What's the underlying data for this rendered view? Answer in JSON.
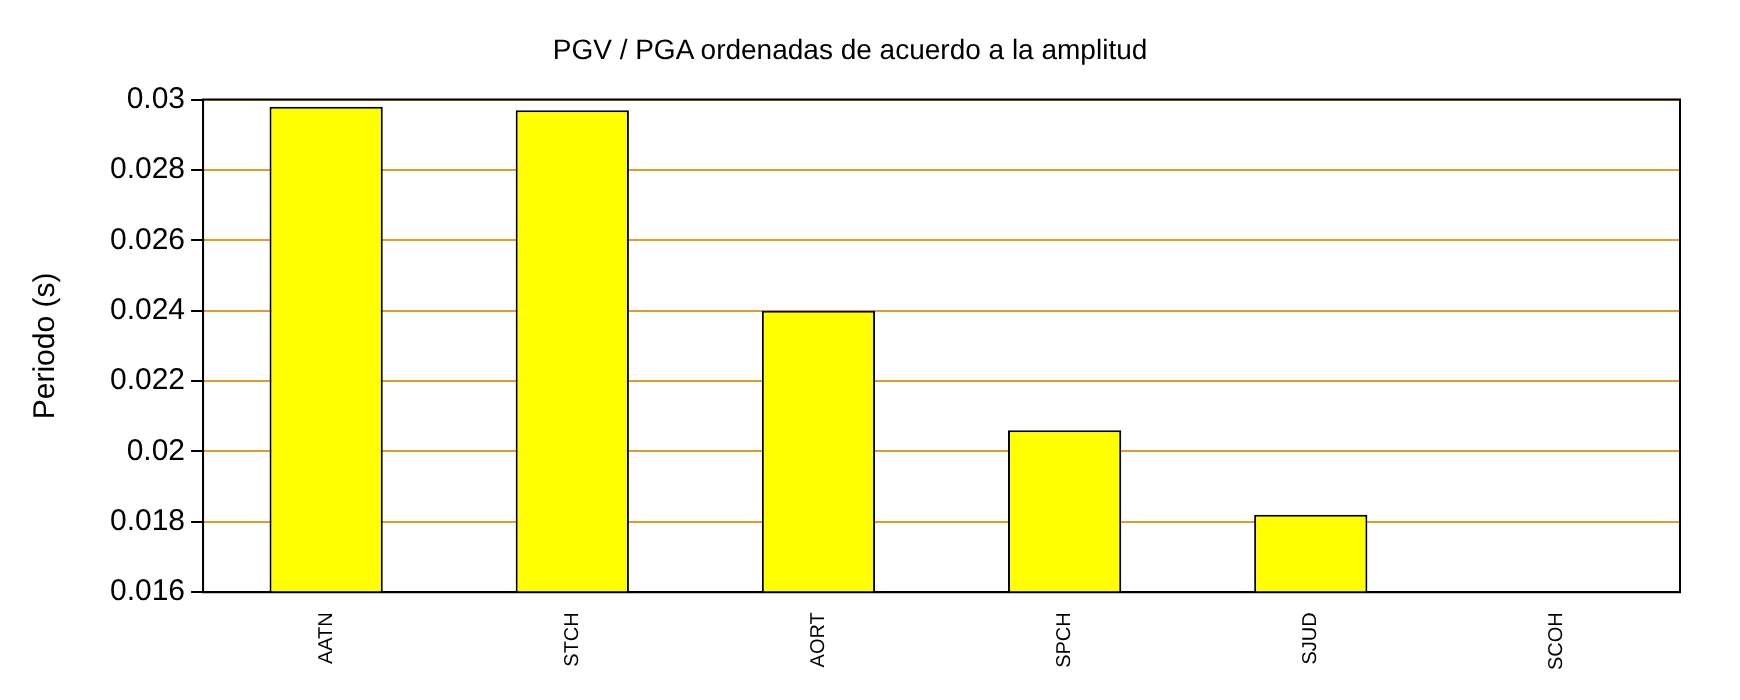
{
  "chart_data": {
    "type": "bar",
    "title": "PGV / PGA ordenadas de acuerdo a la amplitud",
    "ylabel": "Periodo (s)",
    "categories": [
      "AATN",
      "STCH",
      "AORT",
      "SPCH",
      "SJUD",
      "SCOH"
    ],
    "values": [
      0.0298,
      0.0297,
      0.024,
      0.0206,
      0.0182,
      null
    ],
    "color": "#ffff00",
    "ylim": [
      0.016,
      0.03
    ],
    "yticks": [
      {
        "value": 0.016,
        "label": "0.016"
      },
      {
        "value": 0.018,
        "label": "0.018"
      },
      {
        "value": 0.02,
        "label": "0.02"
      },
      {
        "value": 0.022,
        "label": "0.022"
      },
      {
        "value": 0.024,
        "label": "0.024"
      },
      {
        "value": 0.026,
        "label": "0.026"
      },
      {
        "value": 0.028,
        "label": "0.028"
      },
      {
        "value": 0.03,
        "label": "0.03"
      }
    ],
    "grid": "y",
    "legend": false
  }
}
